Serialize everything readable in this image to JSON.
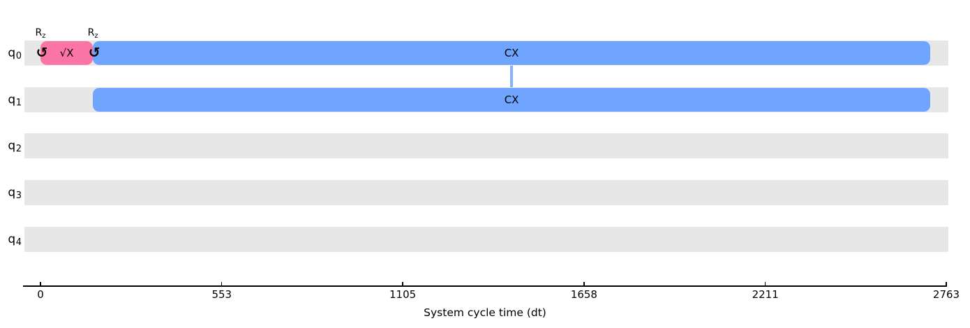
{
  "chart_data": {
    "type": "timeline",
    "title": "",
    "xlabel": "System cycle time (dt)",
    "x_range": [
      0,
      2763
    ],
    "x_ticks": [
      0,
      553,
      1105,
      1658,
      2211,
      2763
    ],
    "qubits": [
      {
        "label_main": "q",
        "label_sub": "0"
      },
      {
        "label_main": "q",
        "label_sub": "1"
      },
      {
        "label_main": "q",
        "label_sub": "2"
      },
      {
        "label_main": "q",
        "label_sub": "3"
      },
      {
        "label_main": "q",
        "label_sub": "4"
      }
    ],
    "gate_boxes": [
      {
        "qubit": 0,
        "label": "√X",
        "t_start": 0,
        "t_end": 160,
        "color": "#FA74A6"
      },
      {
        "qubit": 0,
        "label": "CX",
        "t_start": 160,
        "t_end": 2714,
        "color": "#6FA4FF"
      },
      {
        "qubit": 1,
        "label": "CX",
        "t_start": 160,
        "t_end": 2714,
        "color": "#6FA4FF"
      }
    ],
    "frame_changes": [
      {
        "qubit": 0,
        "t": 0,
        "symbol": "↺",
        "label_main": "R",
        "label_sub": "z"
      },
      {
        "qubit": 0,
        "t": 160,
        "symbol": "↺",
        "label_main": "R",
        "label_sub": "z"
      }
    ],
    "gate_links": [
      {
        "qubit_from": 0,
        "qubit_to": 1,
        "t": 1437,
        "color": "#6FA4FF"
      }
    ],
    "colors": {
      "background": "#ffffff",
      "row_background": "#e7e7e7",
      "axis": "#000000",
      "text": "#000000"
    }
  }
}
